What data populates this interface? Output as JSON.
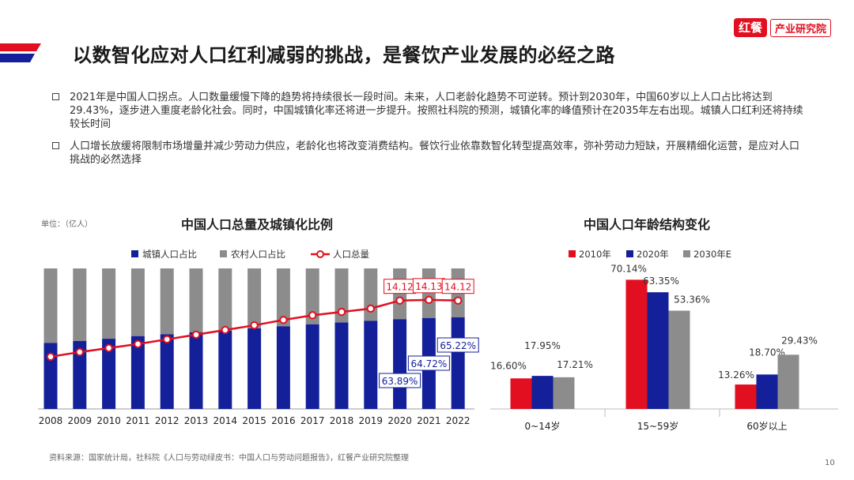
{
  "page": {
    "title": "以数智化应对人口红利减弱的挑战，是餐饮产业发展的必经之路",
    "logo_mark": "红餐",
    "logo_name": "产业研究院",
    "page_number": "10",
    "source": "资料来源：国家统计局，社科院《人口与劳动绿皮书：中国人口与劳动问题报告》，红餐产业研究院整理",
    "unit_label": "单位：（亿人）",
    "bullets": [
      "2021年是中国人口拐点。人口数量缓慢下降的趋势将持续很长一段时间。未来，人口老龄化趋势不可逆转。预计到2030年，中国60岁以上人口占比将达到29.43%，逐步进入重度老龄化社会。同时，中国城镇化率还将进一步提升。按照社科院的预测，城镇化率的峰值预计在2035年左右出现。城镇人口红利还将持续较长时间",
      "人口增长放缓将限制市场增量并减少劳动力供应，老龄化也将改变消费结构。餐饮行业依靠数智化转型提高效率，弥补劳动力短缺，开展精细化运营，是应对人口挑战的必然选择"
    ],
    "colors": {
      "accent": "#e10f1f",
      "navy": "#13209a",
      "gray": "#8c8c8c",
      "light_gray": "#a6a6a6"
    }
  },
  "chart_data": [
    {
      "type": "bar",
      "title": "中国人口总量及城镇化比例",
      "categories": [
        "2008",
        "2009",
        "2010",
        "2011",
        "2012",
        "2013",
        "2014",
        "2015",
        "2016",
        "2017",
        "2018",
        "2019",
        "2020",
        "2021",
        "2022"
      ],
      "legend": [
        "城镇人口占比",
        "农村人口占比",
        "人口总量"
      ],
      "series": [
        {
          "name": "城镇人口占比",
          "kind": "stacked-bar",
          "values": [
            46.99,
            48.34,
            49.95,
            51.83,
            53.1,
            54.49,
            55.75,
            57.33,
            58.84,
            60.24,
            61.5,
            62.71,
            63.89,
            64.72,
            65.22
          ]
        },
        {
          "name": "农村人口占比",
          "kind": "stacked-bar",
          "values": [
            53.01,
            51.66,
            50.05,
            48.17,
            46.9,
            45.51,
            44.25,
            42.67,
            41.16,
            39.76,
            38.5,
            37.29,
            36.11,
            35.28,
            34.78
          ]
        },
        {
          "name": "人口总量",
          "kind": "line",
          "values": [
            13.28,
            13.35,
            13.41,
            13.47,
            13.54,
            13.61,
            13.68,
            13.75,
            13.83,
            13.9,
            13.95,
            14.0,
            14.12,
            14.13,
            14.12
          ]
        }
      ],
      "labels_total": [
        {
          "index": 12,
          "text": "14.12"
        },
        {
          "index": 13,
          "text": "14.13"
        },
        {
          "index": 14,
          "text": "14.12"
        }
      ],
      "labels_urban": [
        {
          "index": 12,
          "text": "63.89%"
        },
        {
          "index": 13,
          "text": "64.72%"
        },
        {
          "index": 14,
          "text": "65.22%"
        }
      ],
      "ylim_pct": [
        0,
        100
      ],
      "ylim_total": [
        12.5,
        14.6
      ]
    },
    {
      "type": "bar",
      "title": "中国人口年龄结构变化",
      "categories": [
        "0~14岁",
        "15~59岁",
        "60岁以上"
      ],
      "series": [
        {
          "name": "2010年",
          "values": [
            16.6,
            70.14,
            13.26
          ]
        },
        {
          "name": "2020年",
          "values": [
            17.95,
            63.35,
            18.7
          ]
        },
        {
          "name": "2030年E",
          "values": [
            17.21,
            53.36,
            29.43
          ]
        }
      ],
      "value_labels": [
        [
          "16.60%",
          "70.14%",
          "13.26%"
        ],
        [
          "17.95%",
          "63.35%",
          "18.70%"
        ],
        [
          "17.21%",
          "53.36%",
          "29.43%"
        ]
      ],
      "ylim": [
        0,
        78
      ]
    }
  ]
}
